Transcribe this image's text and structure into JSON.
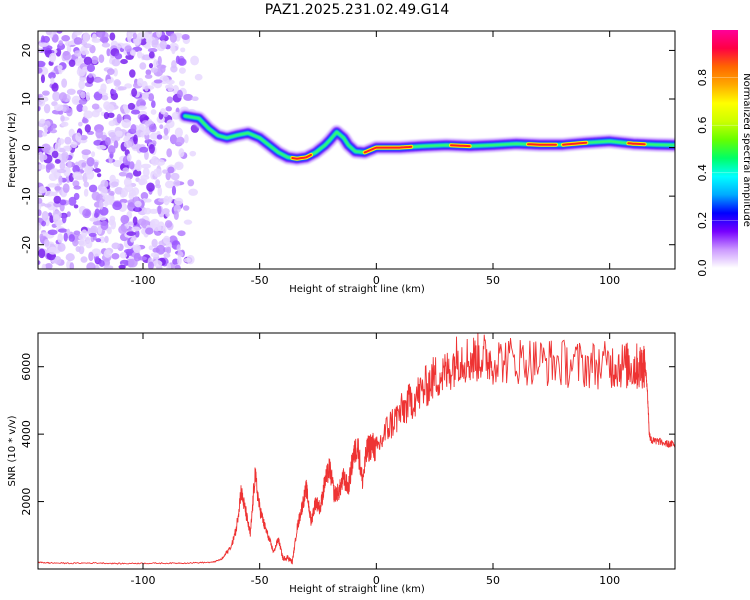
{
  "figure": {
    "title": "PAZ1.2025.231.02.49.G14"
  },
  "chart_data": [
    {
      "type": "heatmap",
      "xlabel": "Height of straight line (km)",
      "ylabel": "Frequency (Hz)",
      "xlim": [
        -145,
        128
      ],
      "ylim": [
        -25,
        24
      ],
      "xticks": [
        -100,
        -50,
        0,
        50,
        100
      ],
      "yticks": [
        -20,
        -10,
        0,
        10,
        20
      ],
      "noise_region": {
        "x": [
          -145,
          -75
        ],
        "y": [
          -25,
          24
        ]
      },
      "ridge": [
        {
          "x": -82,
          "y": 6.5
        },
        {
          "x": -76,
          "y": 6.0
        },
        {
          "x": -72,
          "y": 4.0
        },
        {
          "x": -68,
          "y": 2.5
        },
        {
          "x": -64,
          "y": 2.0
        },
        {
          "x": -60,
          "y": 2.5
        },
        {
          "x": -55,
          "y": 3.0
        },
        {
          "x": -50,
          "y": 2.0
        },
        {
          "x": -46,
          "y": 0.5
        },
        {
          "x": -42,
          "y": -1.0
        },
        {
          "x": -38,
          "y": -2.0
        },
        {
          "x": -34,
          "y": -2.3
        },
        {
          "x": -30,
          "y": -2.0
        },
        {
          "x": -26,
          "y": -1.0
        },
        {
          "x": -22,
          "y": 0.5
        },
        {
          "x": -20,
          "y": 1.5
        },
        {
          "x": -17,
          "y": 3.2
        },
        {
          "x": -14,
          "y": 2.0
        },
        {
          "x": -12,
          "y": 0.5
        },
        {
          "x": -9,
          "y": -0.8
        },
        {
          "x": -5,
          "y": -1.0
        },
        {
          "x": -2,
          "y": -0.4
        },
        {
          "x": 0,
          "y": 0.0
        },
        {
          "x": 10,
          "y": 0.0
        },
        {
          "x": 20,
          "y": 0.3
        },
        {
          "x": 30,
          "y": 0.5
        },
        {
          "x": 40,
          "y": 0.3
        },
        {
          "x": 50,
          "y": 0.5
        },
        {
          "x": 60,
          "y": 0.8
        },
        {
          "x": 70,
          "y": 0.6
        },
        {
          "x": 80,
          "y": 0.6
        },
        {
          "x": 90,
          "y": 1.0
        },
        {
          "x": 100,
          "y": 1.3
        },
        {
          "x": 110,
          "y": 0.8
        },
        {
          "x": 120,
          "y": 0.6
        },
        {
          "x": 128,
          "y": 0.5
        }
      ],
      "strong_segments": [
        {
          "x": [
            -36,
            -28
          ]
        },
        {
          "x": [
            -5,
            15
          ]
        },
        {
          "x": [
            32,
            40
          ]
        },
        {
          "x": [
            65,
            77
          ]
        },
        {
          "x": [
            80,
            90
          ]
        },
        {
          "x": [
            108,
            115
          ]
        }
      ],
      "colorbar": {
        "label": "Normalized spectral amplitude",
        "range": [
          0,
          1
        ],
        "ticks": [
          0.0,
          0.2,
          0.4,
          0.6,
          0.8
        ],
        "colors": [
          "#ffffff",
          "#cc99ff",
          "#7700ff",
          "#0000ff",
          "#00aaff",
          "#00ffff",
          "#00ff66",
          "#66ff00",
          "#ccff00",
          "#ffff00",
          "#ffaa00",
          "#ff6600",
          "#ff0044",
          "#ff0099"
        ]
      }
    },
    {
      "type": "line",
      "xlabel": "Height of straight line (km)",
      "ylabel": "SNR (10 * v/v)",
      "xlim": [
        -145,
        128
      ],
      "ylim": [
        0,
        7000
      ],
      "xticks": [
        -100,
        -50,
        0,
        50,
        100
      ],
      "yticks": [
        2000,
        4000,
        6000
      ],
      "line_color": "#ee3333",
      "x": [
        -145,
        -140,
        -130,
        -120,
        -110,
        -100,
        -90,
        -80,
        -70,
        -66,
        -62,
        -60,
        -58,
        -56,
        -54,
        -52,
        -50,
        -48,
        -46,
        -44,
        -42,
        -40,
        -38,
        -36,
        -34,
        -32,
        -30,
        -28,
        -26,
        -24,
        -22,
        -20,
        -18,
        -16,
        -14,
        -12,
        -10,
        -8,
        -6,
        -4,
        -2,
        0,
        5,
        10,
        15,
        20,
        25,
        30,
        35,
        40,
        45,
        50,
        60,
        70,
        80,
        90,
        100,
        105,
        110,
        113,
        115,
        116,
        117,
        118,
        120,
        125,
        128
      ],
      "y": [
        200,
        180,
        170,
        180,
        160,
        170,
        170,
        180,
        200,
        300,
        700,
        1200,
        2300,
        1700,
        1000,
        2800,
        1800,
        1300,
        900,
        500,
        900,
        300,
        350,
        200,
        1200,
        1800,
        2400,
        1400,
        2000,
        1800,
        2600,
        3000,
        2200,
        2300,
        2700,
        2400,
        3300,
        3700,
        2600,
        3500,
        3700,
        3500,
        4200,
        4600,
        5000,
        5300,
        5700,
        5800,
        6300,
        6200,
        6300,
        6200,
        6200,
        6150,
        6100,
        6050,
        6050,
        6050,
        6000,
        6000,
        6100,
        5500,
        4000,
        3800,
        3800,
        3700,
        3700
      ]
    }
  ]
}
